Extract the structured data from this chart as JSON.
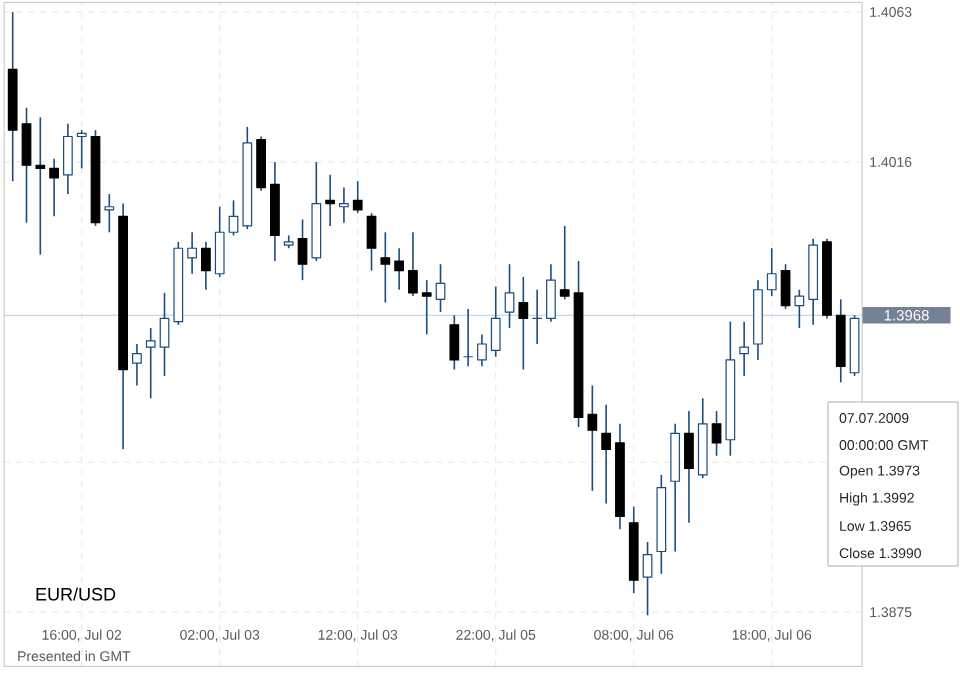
{
  "chart_data": {
    "type": "candlestick",
    "categories": [
      null,
      null,
      null,
      null,
      null,
      "16:00, Jul 02",
      null,
      null,
      null,
      null,
      null,
      null,
      null,
      null,
      null,
      "02:00, Jul 03",
      null,
      null,
      null,
      null,
      null,
      null,
      null,
      null,
      null,
      "12:00, Jul 03",
      null,
      null,
      null,
      null,
      null,
      null,
      null,
      null,
      null,
      "22:00, Jul 05",
      null,
      null,
      null,
      null,
      null,
      null,
      null,
      null,
      null,
      "08:00, Jul 06",
      null,
      null,
      null,
      null,
      null,
      null,
      null,
      null,
      null,
      "18:00, Jul 06",
      null,
      null,
      null,
      null,
      null,
      null
    ],
    "ohlc": [
      [
        1.4045,
        1.4063,
        1.401,
        1.4026
      ],
      [
        1.4028,
        1.4033,
        1.3997,
        1.4015
      ],
      [
        1.4015,
        1.403,
        1.3987,
        1.4014
      ],
      [
        1.4014,
        1.4017,
        1.3999,
        1.4011
      ],
      [
        1.4012,
        1.4028,
        1.4006,
        1.4024
      ],
      [
        1.4024,
        1.4026,
        1.4014,
        1.4025
      ],
      [
        1.4024,
        1.4026,
        1.3996,
        1.3997
      ],
      [
        1.4001,
        1.4006,
        1.3994,
        1.4002
      ],
      [
        1.3999,
        1.4003,
        1.3926,
        1.3951
      ],
      [
        1.3953,
        1.3959,
        1.3946,
        1.3956
      ],
      [
        1.3958,
        1.3964,
        1.3942,
        1.396
      ],
      [
        1.3958,
        1.3975,
        1.3949,
        1.3967
      ],
      [
        1.3966,
        1.3991,
        1.3965,
        1.3989
      ],
      [
        1.3986,
        1.3994,
        1.3981,
        1.3989
      ],
      [
        1.3989,
        1.3991,
        1.3976,
        1.3982
      ],
      [
        1.3981,
        1.4002,
        1.398,
        1.3994
      ],
      [
        1.3994,
        1.4004,
        1.3993,
        1.3999
      ],
      [
        1.3996,
        1.4027,
        1.3995,
        1.4022
      ],
      [
        1.4023,
        1.4024,
        1.4007,
        1.4008
      ],
      [
        1.4009,
        1.4016,
        1.3985,
        1.3993
      ],
      [
        1.399,
        1.3993,
        1.3989,
        1.3991
      ],
      [
        1.3992,
        1.3998,
        1.3979,
        1.3984
      ],
      [
        1.3986,
        1.4016,
        1.3985,
        1.4003
      ],
      [
        1.4004,
        1.4012,
        1.3996,
        1.4003
      ],
      [
        1.4002,
        1.4008,
        1.3997,
        1.4003
      ],
      [
        1.4004,
        1.401,
        1.4,
        1.4001
      ],
      [
        1.3999,
        1.4,
        1.3982,
        1.3989
      ],
      [
        1.3986,
        1.3994,
        1.3972,
        1.3984
      ],
      [
        1.3985,
        1.3989,
        1.3976,
        1.3982
      ],
      [
        1.3982,
        1.3994,
        1.3974,
        1.3975
      ],
      [
        1.3975,
        1.3979,
        1.3962,
        1.3974
      ],
      [
        1.3973,
        1.3984,
        1.3969,
        1.3978
      ],
      [
        1.3965,
        1.3968,
        1.3951,
        1.3954
      ],
      [
        1.3955,
        1.397,
        1.3952,
        1.3955
      ],
      [
        1.3954,
        1.3962,
        1.3952,
        1.3959
      ],
      [
        1.3957,
        1.3977,
        1.3955,
        1.3967
      ],
      [
        1.3969,
        1.3984,
        1.3964,
        1.3975
      ],
      [
        1.3972,
        1.398,
        1.3951,
        1.3967
      ],
      [
        1.3967,
        1.3976,
        1.3959,
        1.3967
      ],
      [
        1.3967,
        1.3984,
        1.3966,
        1.3979
      ],
      [
        1.3976,
        1.3996,
        1.3973,
        1.3974
      ],
      [
        1.3975,
        1.3985,
        1.3933,
        1.3936
      ],
      [
        1.3937,
        1.3946,
        1.3913,
        1.3932
      ],
      [
        1.3931,
        1.394,
        1.3909,
        1.3926
      ],
      [
        1.3928,
        1.3934,
        1.3901,
        1.3905
      ],
      [
        1.3903,
        1.3908,
        1.3881,
        1.3885
      ],
      [
        1.3886,
        1.3897,
        1.3874,
        1.3893
      ],
      [
        1.3894,
        1.3918,
        1.3887,
        1.3914
      ],
      [
        1.3916,
        1.3934,
        1.3894,
        1.3931
      ],
      [
        1.3931,
        1.3938,
        1.3903,
        1.392
      ],
      [
        1.3918,
        1.3942,
        1.3917,
        1.3934
      ],
      [
        1.3934,
        1.3938,
        1.3924,
        1.3928
      ],
      [
        1.3929,
        1.3966,
        1.3924,
        1.3954
      ],
      [
        1.3956,
        1.3966,
        1.3949,
        1.3958
      ],
      [
        1.3959,
        1.3979,
        1.3954,
        1.3976
      ],
      [
        1.3976,
        1.3989,
        1.3974,
        1.3981
      ],
      [
        1.3982,
        1.3984,
        1.397,
        1.3971
      ],
      [
        1.3971,
        1.3976,
        1.3964,
        1.3974
      ],
      [
        1.3973,
        1.3992,
        1.3965,
        1.399
      ],
      [
        1.3991,
        1.3992,
        1.3967,
        1.3968
      ],
      [
        1.3968,
        1.3973,
        1.3947,
        1.3952
      ],
      [
        1.395,
        1.3968,
        1.3949,
        1.3967
      ]
    ],
    "color": "#1a4c7c",
    "colors": [
      "#000000",
      "#000000",
      "#000000",
      "#000000",
      "#1a4c7c",
      "#1a4c7c",
      "#000000",
      "#1a4c7c",
      "#000000",
      "#1a4c7c",
      "#1a4c7c",
      "#1a4c7c",
      "#1a4c7c",
      "#1a4c7c",
      "#000000",
      "#1a4c7c",
      "#1a4c7c",
      "#1a4c7c",
      "#000000",
      "#000000",
      "#1a4c7c",
      "#000000",
      "#1a4c7c",
      "#000000",
      "#1a4c7c",
      "#000000",
      "#000000",
      "#000000",
      "#000000",
      "#000000",
      "#000000",
      "#1a4c7c",
      "#000000",
      "#1a4c7c",
      "#1a4c7c",
      "#1a4c7c",
      "#1a4c7c",
      "#000000",
      "#1a4c7c",
      "#1a4c7c",
      "#000000",
      "#000000",
      "#000000",
      "#000000",
      "#000000",
      "#000000",
      "#1a4c7c",
      "#1a4c7c",
      "#1a4c7c",
      "#000000",
      "#1a4c7c",
      "#000000",
      "#1a4c7c",
      "#1a4c7c",
      "#1a4c7c",
      "#1a4c7c",
      "#000000",
      "#1a4c7c",
      "#1a4c7c",
      "#000000",
      "#000000",
      "#1a4c7c"
    ],
    "ylim": [
      1.3858,
      1.4066
    ],
    "yticks": [
      1.4063,
      1.4016,
      {
        "value": 1.3922,
        "label": null
      },
      1.3875
    ],
    "grid": true,
    "ref_lines": [
      {
        "axis": "y",
        "value": 1.3968,
        "label": "1.3968",
        "color": "#a6c2e3"
      }
    ],
    "annotations": [
      "EUR/USD",
      "Presented in GMT",
      "07.07.2009",
      "00:00:00 GMT",
      "Open 1.3973",
      "High 1.3992",
      "Low 1.3965",
      "Close 1.3990"
    ]
  }
}
